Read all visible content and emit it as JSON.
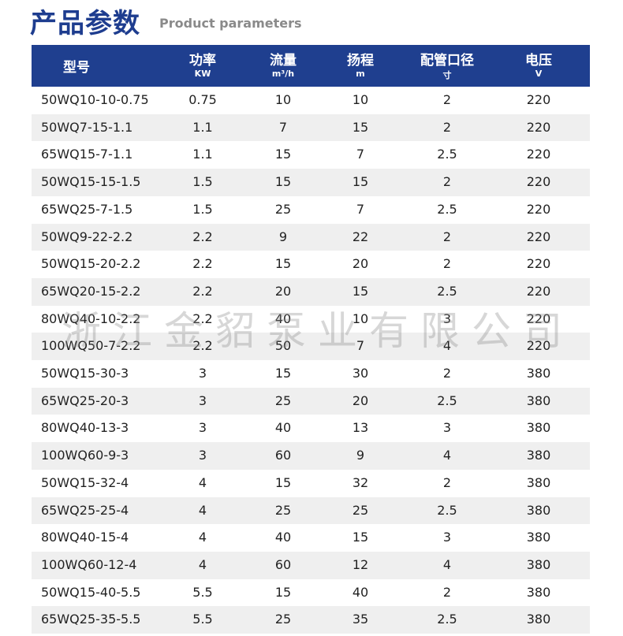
{
  "header": {
    "title": "产品参数",
    "subtitle": "Product parameters"
  },
  "table": {
    "columns": [
      {
        "name": "型号"
      },
      {
        "name": "功率",
        "unit": "KW"
      },
      {
        "name": "流量",
        "unit": "m³/h"
      },
      {
        "name": "扬程",
        "unit": "m"
      },
      {
        "name": "配管口径",
        "unit": "寸"
      },
      {
        "name": "电压",
        "unit": "V"
      }
    ],
    "rows": [
      [
        "50WQ10-10-0.75",
        0.75,
        10,
        10,
        2,
        220
      ],
      [
        "50WQ7-15-1.1",
        1.1,
        7,
        15,
        2,
        220
      ],
      [
        "65WQ15-7-1.1",
        1.1,
        15,
        7,
        2.5,
        220
      ],
      [
        "50WQ15-15-1.5",
        1.5,
        15,
        15,
        2,
        220
      ],
      [
        "65WQ25-7-1.5",
        1.5,
        25,
        7,
        2.5,
        220
      ],
      [
        "50WQ9-22-2.2",
        2.2,
        9,
        22,
        2,
        220
      ],
      [
        "50WQ15-20-2.2",
        2.2,
        15,
        20,
        2,
        220
      ],
      [
        "65WQ20-15-2.2",
        2.2,
        20,
        15,
        2.5,
        220
      ],
      [
        "80WQ40-10-2.2",
        2.2,
        40,
        10,
        3,
        220
      ],
      [
        "100WQ50-7-2.2",
        2.2,
        50,
        7,
        4,
        220
      ],
      [
        "50WQ15-30-3",
        3,
        15,
        30,
        2,
        380
      ],
      [
        "65WQ25-20-3",
        3,
        25,
        20,
        2.5,
        380
      ],
      [
        "80WQ40-13-3",
        3,
        40,
        13,
        3,
        380
      ],
      [
        "100WQ60-9-3",
        3,
        60,
        9,
        4,
        380
      ],
      [
        "50WQ15-32-4",
        4,
        15,
        32,
        2,
        380
      ],
      [
        "65WQ25-25-4",
        4,
        25,
        25,
        2.5,
        380
      ],
      [
        "80WQ40-15-4",
        4,
        40,
        15,
        3,
        380
      ],
      [
        "100WQ60-12-4",
        4,
        60,
        12,
        4,
        380
      ],
      [
        "50WQ15-40-5.5",
        5.5,
        15,
        40,
        2,
        380
      ],
      [
        "65WQ25-35-5.5",
        5.5,
        25,
        35,
        2.5,
        380
      ]
    ]
  },
  "watermark": "浙江金貂泵业有限公司"
}
